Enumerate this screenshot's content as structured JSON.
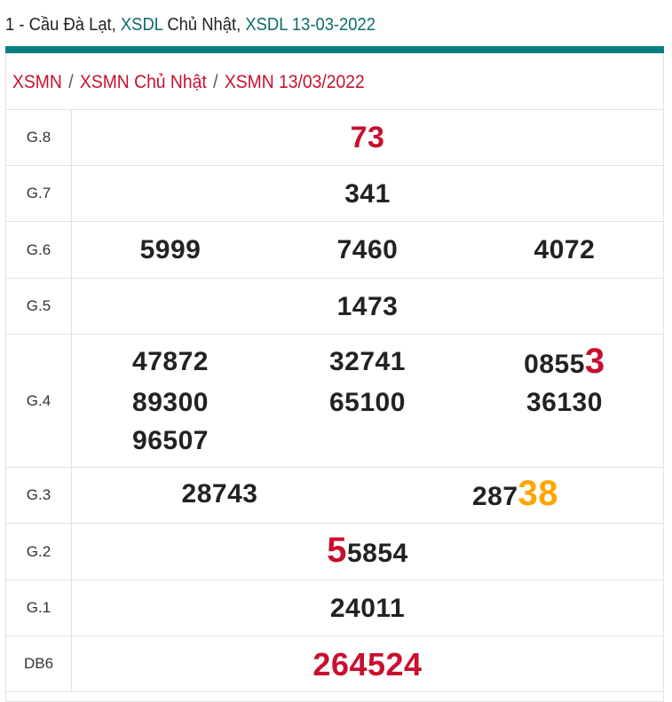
{
  "title": {
    "prefix": "1 - Cầu Đà Lạt, ",
    "link1": "XSDL",
    "mid": " Chủ Nhật, ",
    "link2": "XSDL 13-03-2022"
  },
  "breadcrumb": [
    "XSMN",
    "XSMN Chủ Nhật",
    "XSMN 13/03/2022"
  ],
  "breadcrumb_separator": "/",
  "colors": {
    "teal": "#0a7f7f",
    "red": "#c8102e",
    "orange": "#ffa500"
  },
  "prizes": [
    {
      "label": "G.8",
      "numbers": [
        "73"
      ]
    },
    {
      "label": "G.7",
      "numbers": [
        "341"
      ]
    },
    {
      "label": "G.6",
      "numbers": [
        "5999",
        "7460",
        "4072"
      ]
    },
    {
      "label": "G.5",
      "numbers": [
        "1473"
      ]
    },
    {
      "label": "G.4",
      "numbers": [
        "47872",
        "32741",
        "0855",
        "89300",
        "65100",
        "36130",
        "96507"
      ],
      "highlight": {
        "number_index": 2,
        "text": "3",
        "color": "red"
      }
    },
    {
      "label": "G.3",
      "numbers": [
        "28743",
        "287"
      ],
      "highlight": {
        "number_index": 1,
        "text": "38",
        "color": "orange"
      }
    },
    {
      "label": "G.2",
      "numbers": [
        "5854"
      ],
      "highlight_prefix": "5"
    },
    {
      "label": "G.1",
      "numbers": [
        "24011"
      ]
    },
    {
      "label": "DB6",
      "numbers": [
        "264524"
      ]
    }
  ]
}
